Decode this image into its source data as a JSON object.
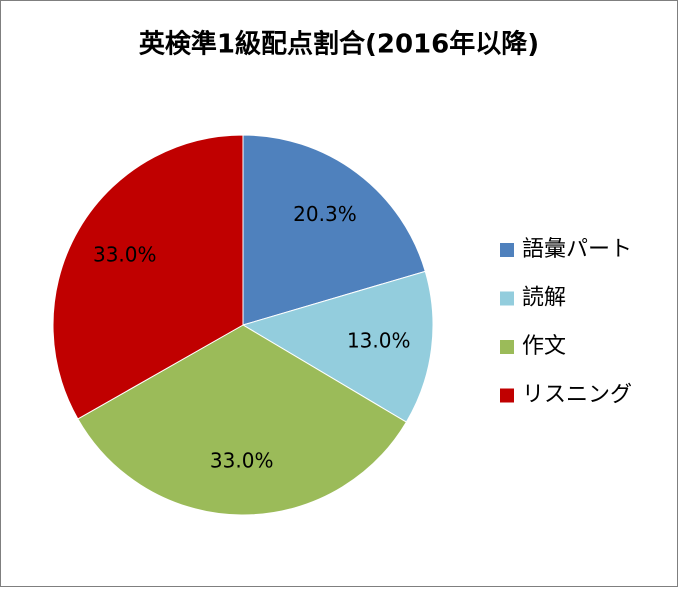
{
  "chart_data": {
    "type": "pie",
    "title": "英検準1級配点割合(2016年以降)",
    "categories": [
      "語彙パート",
      "読解",
      "作文",
      "リスニング"
    ],
    "values": [
      20.3,
      13.0,
      33.0,
      33.0
    ],
    "value_labels": [
      "20.3%",
      "13.0%",
      "33.0%",
      "33.0%"
    ],
    "colors": [
      "#4f81bd",
      "#93cddd",
      "#9bbb59",
      "#c00000"
    ],
    "legend": "right"
  }
}
